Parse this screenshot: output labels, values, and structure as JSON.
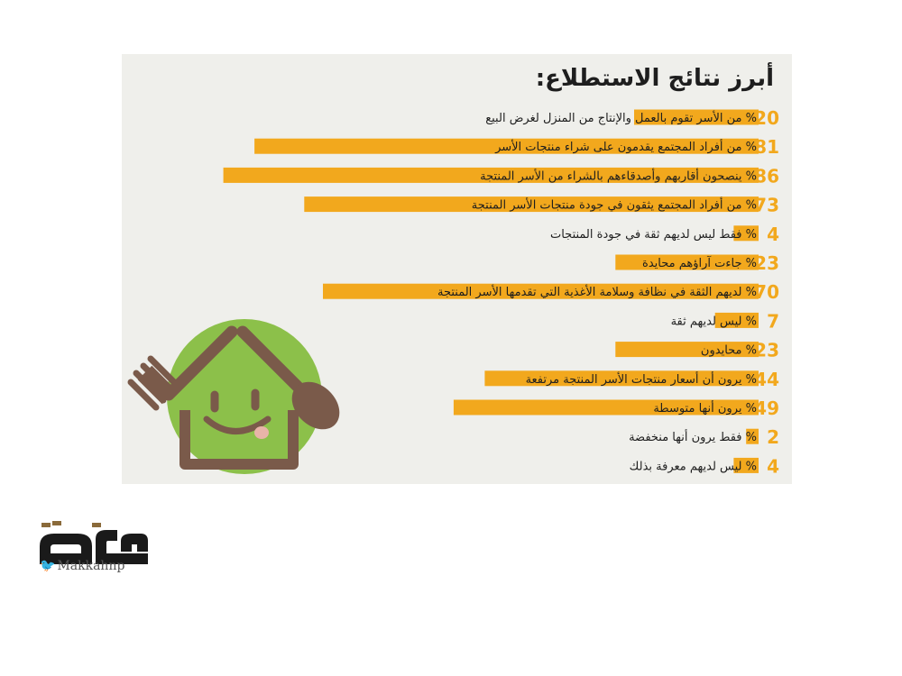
{
  "chart_data": {
    "type": "bar",
    "orientation": "horizontal",
    "unit": "%",
    "title": "أبرز نتائج الاستطلاع:",
    "categories": [
      "% من الأسر تقوم بالعمل والإنتاج من المنزل لغرض البيع",
      "% من أفراد المجتمع يقدمون على شراء منتجات الأسر",
      "% ينصحون أقاربهم وأصدقاءهم بالشراء من الأسر المنتجة",
      "% من أفراد المجتمع يثقون في جودة منتجات الأسر المنتجة",
      "% فقط ليس لديهم ثقة في جودة المنتجات",
      "% جاءت آراؤهم محايدة",
      "% لديهم الثقة في نظافة وسلامة الأغذية التي تقدمها الأسر المنتجة",
      "% ليس لديهم ثقة",
      "% محايدون",
      "% يرون أن أسعار منتجات الأسر المنتجة مرتفعة",
      "% يرون أنها متوسطة",
      "% فقط يرون أنها منخفضة",
      "% ليس لديهم معرفة بذلك"
    ],
    "values": [
      20,
      81,
      86,
      73,
      4,
      23,
      70,
      7,
      23,
      44,
      49,
      2,
      4
    ],
    "value_labels": [
      "20",
      "81",
      "86",
      "73",
      "4",
      "23",
      "70",
      "7",
      "23",
      "44",
      "49",
      "2",
      "4"
    ],
    "xlim": [
      0,
      100
    ],
    "grid": false,
    "legend": "none",
    "colors": {
      "bar": "#f2a81d",
      "value": "#f2a81d",
      "label": "#1e1e1e",
      "panel": "#efefeb"
    }
  },
  "illustration": {
    "icons": [
      "house-icon",
      "smiley-icon",
      "fork-icon",
      "spoon-icon"
    ],
    "colors": {
      "circle": "#8cc04a",
      "brown": "#7a5a4a",
      "tongue": "#e8b4a8"
    }
  },
  "logo": {
    "text": "مكة",
    "handle": "Makkahnp",
    "icon": "twitter-bird-icon",
    "colors": {
      "text": "#1a1a1a",
      "accent": "#8a6a3a",
      "bird": "#1da1f2"
    }
  }
}
